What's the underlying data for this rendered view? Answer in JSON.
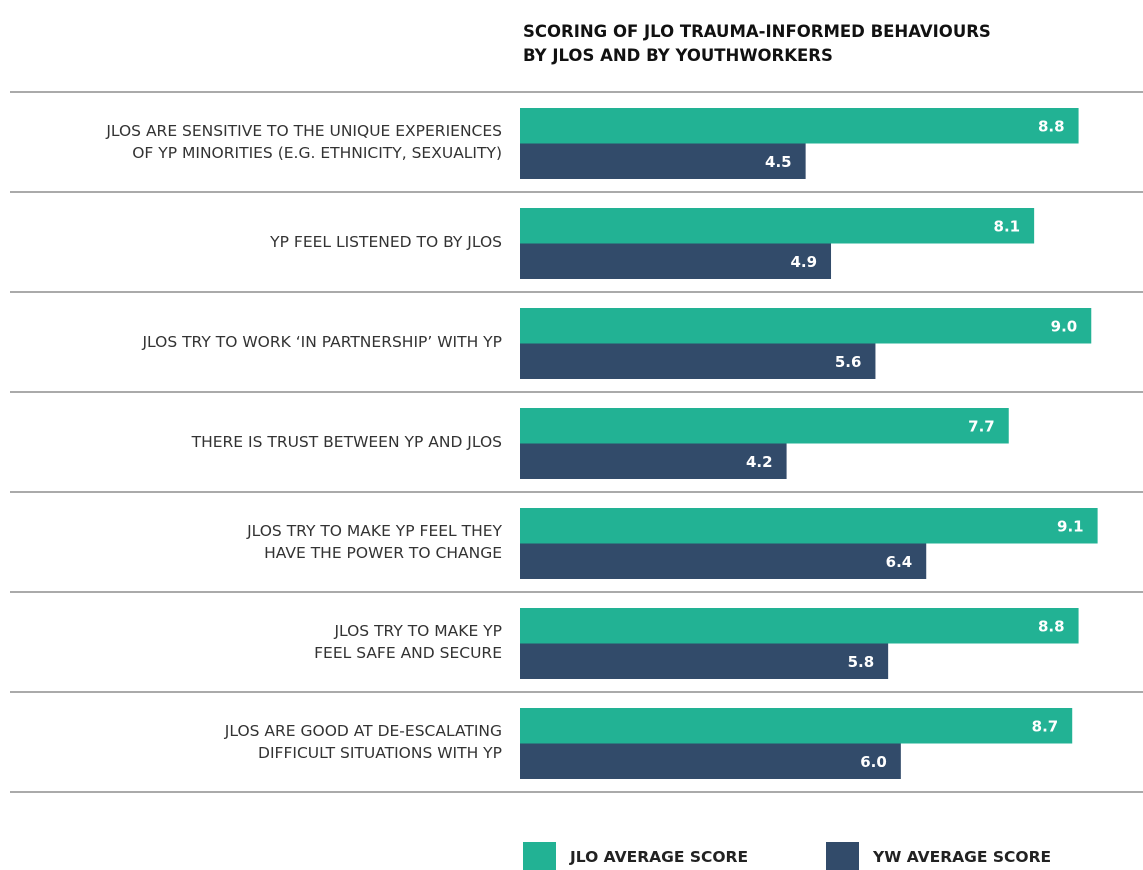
{
  "chart_data": {
    "type": "hbar",
    "title": "SCORING OF JLO TRAUMA-INFORMED BEHAVIOURS\nBY JLOS AND BY YOUTHWORKERS",
    "categories": [
      "JLOS ARE SENSITIVE TO THE UNIQUE EXPERIENCES\nOF YP MINORITIES (E.G. ETHNICITY, SEXUALITY)",
      "YP FEEL LISTENED TO BY JLOS",
      "JLOS TRY TO WORK ‘IN PARTNERSHIP’ WITH YP",
      "THERE IS TRUST BETWEEN YP AND JLOS",
      "JLOS TRY TO MAKE YP FEEL THEY\nHAVE THE POWER TO CHANGE",
      "JLOS TRY TO MAKE YP\nFEEL SAFE AND SECURE",
      "JLOS ARE GOOD AT DE-ESCALATING\nDIFFICULT SITUATIONS WITH YP"
    ],
    "series": [
      {
        "name": "JLO AVERAGE SCORE",
        "color": "#22b294",
        "values": [
          8.8,
          8.1,
          9.0,
          7.7,
          9.1,
          8.8,
          8.7
        ],
        "value_labels": [
          "8.8",
          "8.1",
          "9.0",
          "7.7",
          "9.1",
          "8.8",
          "8.7"
        ]
      },
      {
        "name": "YW AVERAGE SCORE",
        "color": "#324b6a",
        "values": [
          4.5,
          4.9,
          5.6,
          4.2,
          6.4,
          5.8,
          6.0
        ],
        "value_labels": [
          "4.5",
          "4.9",
          "5.6",
          "4.2",
          "6.4",
          "5.8",
          "6.0"
        ]
      }
    ],
    "xlim": [
      0,
      9.5
    ]
  }
}
